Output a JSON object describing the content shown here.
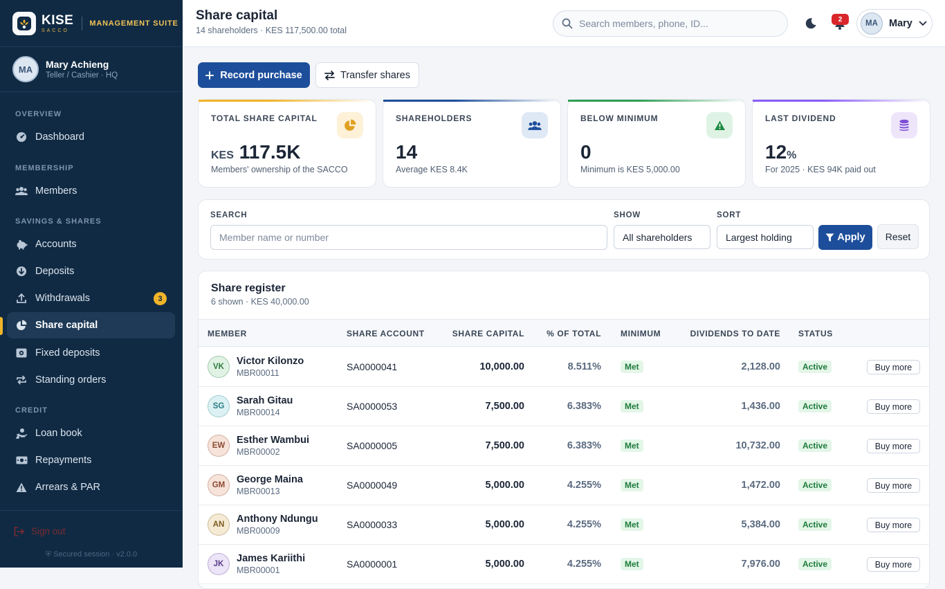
{
  "brand": {
    "name": "KISE",
    "sub": "SACCO",
    "suite": "MANAGEMENT SUITE"
  },
  "user": {
    "initials": "MA",
    "name": "Mary Achieng",
    "role": "Teller / Cashier · HQ",
    "short": "Mary"
  },
  "nav": {
    "sections": [
      "OVERVIEW",
      "MEMBERSHIP",
      "SAVINGS & SHARES",
      "CREDIT"
    ],
    "items": [
      {
        "label": "Dashboard",
        "icon": "gauge-icon"
      },
      {
        "label": "Members",
        "icon": "users-icon"
      },
      {
        "label": "Accounts",
        "icon": "piggy-bank-icon"
      },
      {
        "label": "Deposits",
        "icon": "download-circle-icon"
      },
      {
        "label": "Withdrawals",
        "icon": "upload-icon",
        "badge": "3"
      },
      {
        "label": "Share capital",
        "icon": "pie-chart-icon",
        "active": true
      },
      {
        "label": "Fixed deposits",
        "icon": "vault-icon"
      },
      {
        "label": "Standing orders",
        "icon": "repeat-icon"
      },
      {
        "label": "Loan book",
        "icon": "hand-money-icon"
      },
      {
        "label": "Repayments",
        "icon": "cash-icon"
      },
      {
        "label": "Arrears & PAR",
        "icon": "warning-icon"
      }
    ],
    "signout": "Sign out",
    "secured": "Secured session · v2.0.0"
  },
  "header": {
    "title": "Share capital",
    "subtitle": "14 shareholders · KES 117,500.00 total",
    "search_placeholder": "Search members, phone, ID...",
    "notifications": "2"
  },
  "actions": {
    "record": "Record purchase",
    "transfer": "Transfer shares"
  },
  "stats": [
    {
      "label": "TOTAL SHARE CAPITAL",
      "prefix": "KES",
      "value": "117.5K",
      "suffix": "",
      "note": "Members' ownership of the SACCO",
      "accent": "#f0b429",
      "icon": "pie-chart-icon"
    },
    {
      "label": "SHAREHOLDERS",
      "prefix": "",
      "value": "14",
      "suffix": "",
      "note": "Average KES 8.4K",
      "accent": "#1d4e9b",
      "icon": "users-icon"
    },
    {
      "label": "BELOW MINIMUM",
      "prefix": "",
      "value": "0",
      "suffix": "",
      "note": "Minimum is KES 5,000.00",
      "accent": "#2f9e55",
      "icon": "warning-icon"
    },
    {
      "label": "LAST DIVIDEND",
      "prefix": "",
      "value": "12",
      "suffix": "%",
      "note": "For 2025 · KES 94K paid out",
      "accent": "#8b5cf6",
      "icon": "coins-icon"
    }
  ],
  "filters": {
    "search_label": "SEARCH",
    "search_placeholder": "Member name or number",
    "show_label": "SHOW",
    "show_value": "All shareholders",
    "sort_label": "SORT",
    "sort_value": "Largest holding",
    "apply": "Apply",
    "reset": "Reset"
  },
  "register": {
    "title": "Share register",
    "subtitle": "6 shown · KES 40,000.00",
    "columns": [
      "MEMBER",
      "SHARE ACCOUNT",
      "SHARE CAPITAL",
      "% OF TOTAL",
      "MINIMUM",
      "DIVIDENDS TO DATE",
      "STATUS"
    ],
    "rows": [
      {
        "initials": "VK",
        "name": "Victor Kilonzo",
        "number": "MBR00011",
        "account": "SA0000041",
        "capital": "10,000.00",
        "pct": "8.511%",
        "minimum": "Met",
        "dividends": "2,128.00",
        "status": "Active",
        "action": "Buy more",
        "avatar_bg": "#e0f2e4",
        "avatar_fg": "#2f7a3f"
      },
      {
        "initials": "SG",
        "name": "Sarah Gitau",
        "number": "MBR00014",
        "account": "SA0000053",
        "capital": "7,500.00",
        "pct": "6.383%",
        "minimum": "Met",
        "dividends": "1,436.00",
        "status": "Active",
        "action": "Buy more",
        "avatar_bg": "#dcf1f3",
        "avatar_fg": "#2c7d86"
      },
      {
        "initials": "EW",
        "name": "Esther Wambui",
        "number": "MBR00002",
        "account": "SA0000005",
        "capital": "7,500.00",
        "pct": "6.383%",
        "minimum": "Met",
        "dividends": "10,732.00",
        "status": "Active",
        "action": "Buy more",
        "avatar_bg": "#f6e3da",
        "avatar_fg": "#8c4a33"
      },
      {
        "initials": "GM",
        "name": "George Maina",
        "number": "MBR00013",
        "account": "SA0000049",
        "capital": "5,000.00",
        "pct": "4.255%",
        "minimum": "Met",
        "dividends": "1,472.00",
        "status": "Active",
        "action": "Buy more",
        "avatar_bg": "#f6e3da",
        "avatar_fg": "#8c4a33"
      },
      {
        "initials": "AN",
        "name": "Anthony Ndungu",
        "number": "MBR00009",
        "account": "SA0000033",
        "capital": "5,000.00",
        "pct": "4.255%",
        "minimum": "Met",
        "dividends": "5,384.00",
        "status": "Active",
        "action": "Buy more",
        "avatar_bg": "#f5ebd5",
        "avatar_fg": "#7d5a1e"
      },
      {
        "initials": "JK",
        "name": "James Kariithi",
        "number": "MBR00001",
        "account": "SA0000001",
        "capital": "5,000.00",
        "pct": "4.255%",
        "minimum": "Met",
        "dividends": "7,976.00",
        "status": "Active",
        "action": "Buy more",
        "avatar_bg": "#ece4f7",
        "avatar_fg": "#5b3f8c"
      }
    ]
  }
}
